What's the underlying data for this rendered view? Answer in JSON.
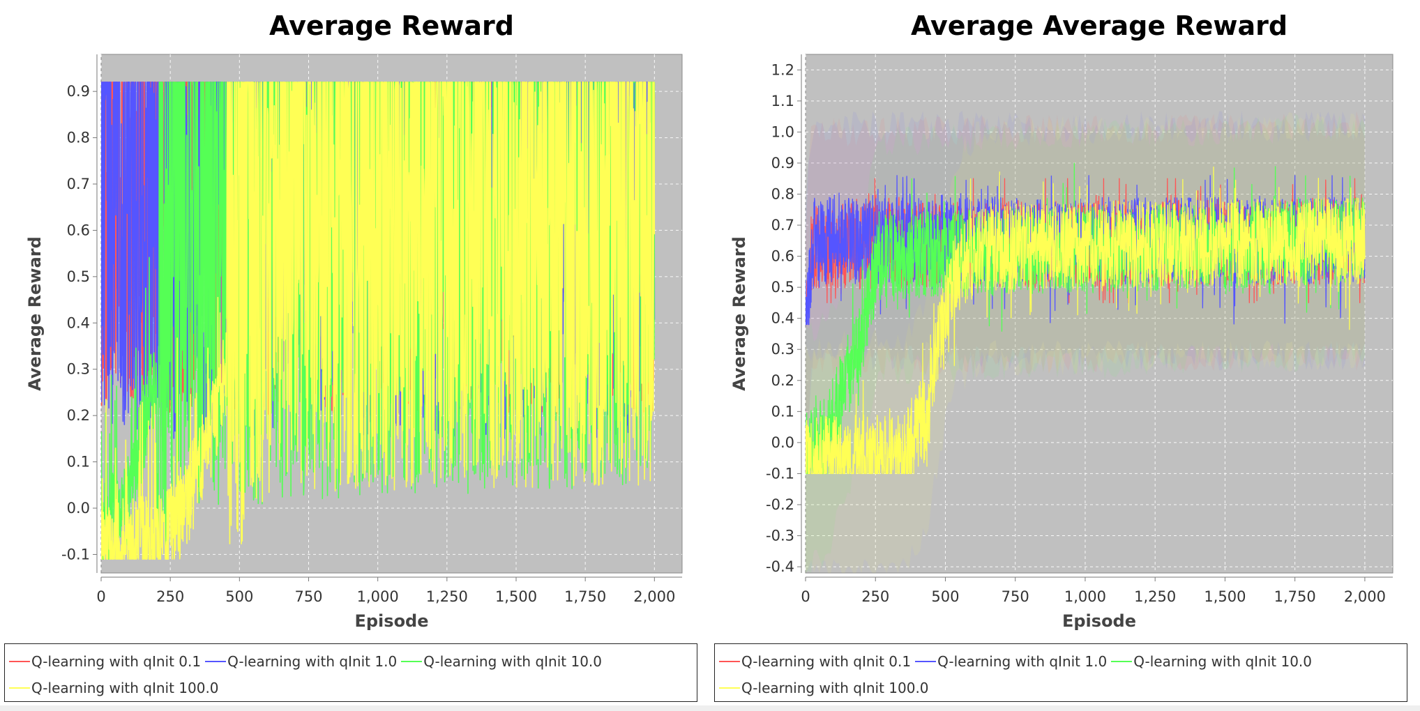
{
  "chart_data": [
    {
      "type": "line",
      "title": "Average Reward",
      "xlabel": "Episode",
      "ylabel": "Average Reward",
      "xlim": [
        0,
        2100
      ],
      "ylim": [
        -0.14,
        0.98
      ],
      "x_ticks": [
        "0",
        "250",
        "500",
        "750",
        "1,000",
        "1,250",
        "1,500",
        "1,750",
        "2,000"
      ],
      "y_ticks": [
        "-0.1",
        "0.0",
        "0.1",
        "0.2",
        "0.3",
        "0.4",
        "0.5",
        "0.6",
        "0.7",
        "0.8",
        "0.9"
      ],
      "grid": true,
      "legend_position": "bottom",
      "background": "#c0c0c0",
      "episodes": 2000,
      "series": [
        {
          "name": "Q-learning with qInit 0.1",
          "color": "#ff5555",
          "profile": [
            [
              0,
              0.6
            ],
            [
              2000,
              0.6
            ]
          ],
          "range": [
            0.2,
            0.92
          ],
          "points": [
            [
              0,
              0.55
            ],
            [
              250,
              0.62
            ],
            [
              500,
              0.6
            ],
            [
              750,
              0.65
            ],
            [
              1000,
              0.6
            ],
            [
              1250,
              0.63
            ],
            [
              1500,
              0.6
            ],
            [
              1750,
              0.62
            ],
            [
              2000,
              0.6
            ]
          ]
        },
        {
          "name": "Q-learning with qInit 1.0",
          "color": "#5555ff",
          "profile": [
            [
              0,
              0.6
            ],
            [
              2000,
              0.6
            ]
          ],
          "range": [
            0.15,
            0.92
          ],
          "points": [
            [
              0,
              0.5
            ],
            [
              250,
              0.6
            ],
            [
              500,
              0.62
            ],
            [
              750,
              0.6
            ],
            [
              1000,
              0.61
            ],
            [
              1250,
              0.6
            ],
            [
              1500,
              0.62
            ],
            [
              1750,
              0.6
            ],
            [
              2000,
              0.6
            ]
          ]
        },
        {
          "name": "Q-learning with qInit 10.0",
          "color": "#55ff55",
          "profile": [
            [
              0,
              -0.05
            ],
            [
              100,
              0.02
            ],
            [
              220,
              0.35
            ],
            [
              300,
              0.55
            ],
            [
              2000,
              0.6
            ]
          ],
          "range": [
            -0.1,
            0.92
          ],
          "points": [
            [
              0,
              -0.05
            ],
            [
              100,
              0.05
            ],
            [
              200,
              0.3
            ],
            [
              250,
              0.55
            ],
            [
              500,
              0.6
            ],
            [
              1000,
              0.6
            ],
            [
              1500,
              0.6
            ],
            [
              2000,
              0.55
            ]
          ]
        },
        {
          "name": "Q-learning with qInit 100.0",
          "color": "#ffff55",
          "profile": [
            [
              0,
              -0.08
            ],
            [
              200,
              -0.07
            ],
            [
              300,
              0.0
            ],
            [
              420,
              0.2
            ],
            [
              520,
              0.5
            ],
            [
              600,
              0.58
            ],
            [
              2000,
              0.6
            ]
          ],
          "range": [
            -0.1,
            0.92
          ],
          "points": [
            [
              0,
              -0.08
            ],
            [
              250,
              -0.07
            ],
            [
              350,
              0.02
            ],
            [
              450,
              0.25
            ],
            [
              500,
              0.45
            ],
            [
              750,
              0.6
            ],
            [
              1250,
              0.6
            ],
            [
              2000,
              0.6
            ]
          ]
        }
      ]
    },
    {
      "type": "line",
      "title": "Average Average Reward",
      "xlabel": "Episode",
      "ylabel": "Average Reward",
      "xlim": [
        0,
        2100
      ],
      "ylim": [
        -0.42,
        1.25
      ],
      "x_ticks": [
        "0",
        "250",
        "500",
        "750",
        "1,000",
        "1,250",
        "1,500",
        "1,750",
        "2,000"
      ],
      "y_ticks": [
        "-0.4",
        "-0.3",
        "-0.2",
        "-0.1",
        "0.0",
        "0.1",
        "0.2",
        "0.3",
        "0.4",
        "0.5",
        "0.6",
        "0.7",
        "0.8",
        "0.9",
        "1.0",
        "1.1",
        "1.2"
      ],
      "grid": true,
      "legend_position": "bottom",
      "background": "#c0c0c0",
      "episodes": 2000,
      "series": [
        {
          "name": "Q-learning with qInit 0.1",
          "color": "#ff5555",
          "profile": [
            [
              0,
              0.3
            ],
            [
              20,
              0.63
            ],
            [
              2000,
              0.65
            ]
          ],
          "range": [
            0.45,
            0.85
          ],
          "points": [
            [
              0,
              0.3
            ],
            [
              250,
              0.65
            ],
            [
              500,
              0.65
            ],
            [
              750,
              0.65
            ],
            [
              1000,
              0.65
            ],
            [
              1250,
              0.65
            ],
            [
              1500,
              0.65
            ],
            [
              1750,
              0.65
            ],
            [
              2000,
              0.65
            ]
          ]
        },
        {
          "name": "Q-learning with qInit 1.0",
          "color": "#5555ff",
          "profile": [
            [
              0,
              0.4
            ],
            [
              30,
              0.65
            ],
            [
              2000,
              0.65
            ]
          ],
          "range": [
            0.38,
            0.86
          ],
          "points": [
            [
              0,
              0.4
            ],
            [
              250,
              0.65
            ],
            [
              500,
              0.66
            ],
            [
              750,
              0.65
            ],
            [
              1000,
              0.65
            ],
            [
              1250,
              0.66
            ],
            [
              1500,
              0.65
            ],
            [
              1750,
              0.65
            ],
            [
              2000,
              0.6
            ]
          ]
        },
        {
          "name": "Q-learning with qInit 10.0",
          "color": "#55ff55",
          "profile": [
            [
              0,
              -0.03
            ],
            [
              80,
              0.02
            ],
            [
              200,
              0.35
            ],
            [
              260,
              0.6
            ],
            [
              2000,
              0.65
            ]
          ],
          "range": [
            -0.1,
            0.9
          ],
          "points": [
            [
              0,
              -0.03
            ],
            [
              100,
              0.08
            ],
            [
              200,
              0.4
            ],
            [
              250,
              0.6
            ],
            [
              500,
              0.65
            ],
            [
              1000,
              0.65
            ],
            [
              1500,
              0.66
            ],
            [
              2000,
              0.55
            ]
          ]
        },
        {
          "name": "Q-learning with qInit 100.0",
          "color": "#ffff55",
          "profile": [
            [
              0,
              -0.06
            ],
            [
              350,
              -0.04
            ],
            [
              430,
              0.08
            ],
            [
              480,
              0.35
            ],
            [
              540,
              0.55
            ],
            [
              620,
              0.63
            ],
            [
              2000,
              0.65
            ]
          ],
          "range": [
            -0.1,
            0.9
          ],
          "points": [
            [
              0,
              -0.06
            ],
            [
              250,
              -0.05
            ],
            [
              400,
              0.0
            ],
            [
              450,
              0.15
            ],
            [
              500,
              0.45
            ],
            [
              750,
              0.63
            ],
            [
              1250,
              0.65
            ],
            [
              2000,
              0.62
            ]
          ]
        }
      ]
    }
  ]
}
